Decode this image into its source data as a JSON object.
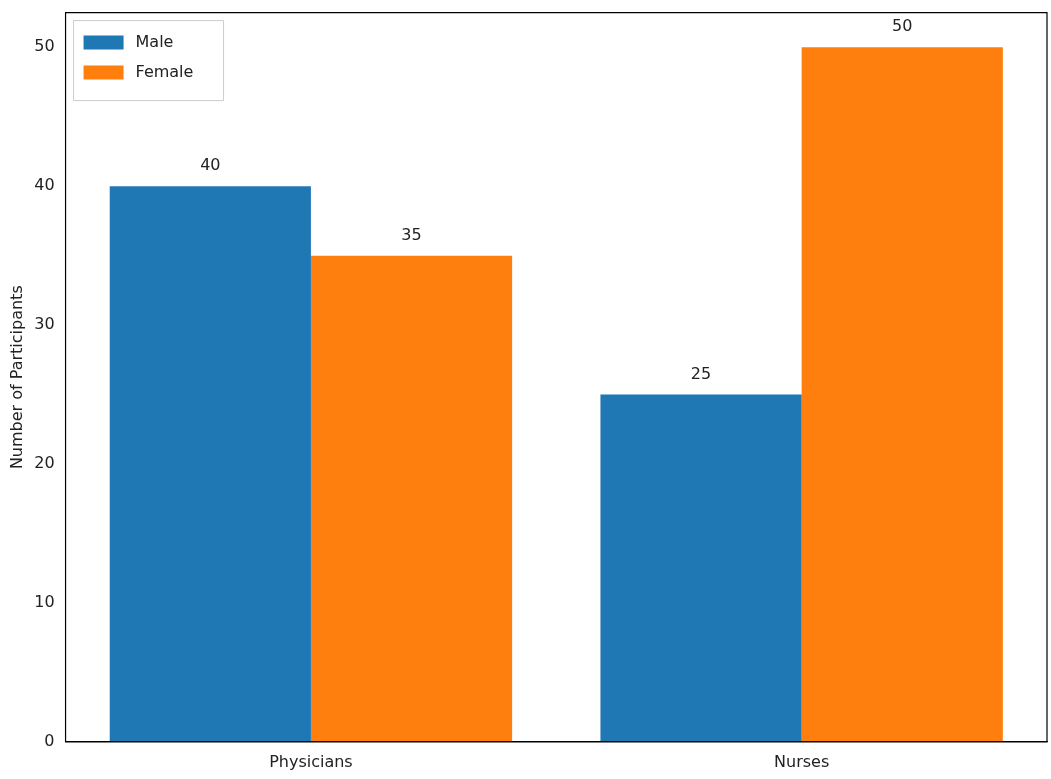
{
  "chart_data": {
    "type": "bar",
    "ylabel": "Number of Participants",
    "categories": [
      "Physicians",
      "Nurses"
    ],
    "series": [
      {
        "name": "Male",
        "color": "#1f77b4",
        "values": [
          40,
          25
        ]
      },
      {
        "name": "Female",
        "color": "#ff7f0e",
        "values": [
          35,
          50
        ]
      }
    ],
    "ylim": [
      0,
      52.5
    ],
    "yticks": [
      0,
      10,
      20,
      30,
      40,
      50
    ],
    "data_labels": true,
    "legend": "top left",
    "grid": false
  }
}
